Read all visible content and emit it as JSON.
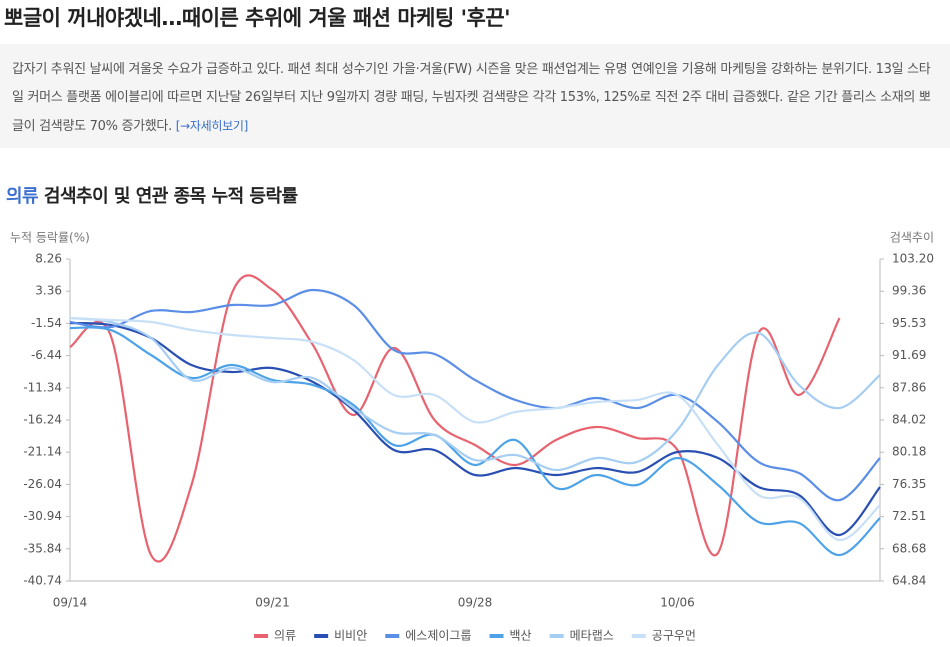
{
  "header": {
    "title": "뽀글이 꺼내야겠네…때이른 추위에 겨울 패션 마케팅 '후끈'"
  },
  "article": {
    "text": "갑자기 추워진 날씨에 겨울옷 수요가 급증하고 있다. 패션 최대 성수기인 가을·겨울(FW) 시즌을 맞은 패션업계는 유명 연예인을 기용해 마케팅을 강화하는 분위기다. 13일 스타일 커머스 플랫폼 에이블리에 따르면 지난달 26일부터 지난 9일까지 경량 패딩, 누빔자켓 검색량은 각각 153%, 125%로 직전 2주 대비 급증했다. 같은 기간 플리스 소재의 뽀글이 검색량도 70% 증가했다.",
    "link": "[→자세히보기]"
  },
  "chart_data": {
    "type": "line",
    "title_highlight": "의류",
    "title": "검색추이 및 연관 종목 누적 등락률",
    "y_label": "누적 등락률(%)",
    "y2_label": "검색추이",
    "categories": [
      "09/14",
      null,
      null,
      null,
      null,
      "09/21",
      null,
      null,
      null,
      null,
      "09/28",
      null,
      null,
      null,
      null,
      "10/06",
      null,
      null,
      null,
      null,
      null
    ],
    "ylim": [
      -40.74,
      8.26
    ],
    "yticks": [
      8.26,
      3.36,
      -1.54,
      -6.44,
      -11.34,
      -16.24,
      -21.14,
      -26.04,
      -30.94,
      -35.84,
      -40.74
    ],
    "y2lim": [
      64.84,
      103.2
    ],
    "y2ticks": [
      {
        "value": 103.2,
        "label": "103.20"
      },
      99.36,
      95.53,
      91.69,
      87.86,
      84.02,
      80.18,
      76.35,
      72.51,
      68.68,
      64.84
    ],
    "legend": "bottom",
    "series": [
      {
        "name": "의류",
        "color": "#e8636f",
        "axis": "y2",
        "values": [
          92.72,
          94.15,
          67.94,
          76.28,
          99.15,
          99.51,
          92.95,
          84.62,
          92.6,
          84.02,
          81.04,
          78.66,
          81.64,
          83.19,
          81.88,
          80.45,
          68.18,
          94.38,
          87.0,
          96.17,
          null
        ]
      },
      {
        "name": "비비안",
        "color": "#2a4fb3",
        "values": [
          -1.48,
          -1.78,
          -3.76,
          -7.87,
          -8.94,
          -8.33,
          -10.46,
          -14.72,
          -20.81,
          -20.81,
          -24.61,
          -23.55,
          -24.61,
          -23.55,
          -24.16,
          -21.11,
          -22.02,
          -26.44,
          -27.66,
          -33.74,
          -26.44
        ]
      },
      {
        "name": "에스제이그룹",
        "color": "#5b8ee6",
        "values": [
          -1.33,
          -2.09,
          0.35,
          0.19,
          1.26,
          1.26,
          3.54,
          1.26,
          -5.59,
          -6.2,
          -10.15,
          -13.2,
          -14.42,
          -12.89,
          -14.42,
          -12.44,
          -16.55,
          -22.63,
          -24.31,
          -28.42,
          -22.02
        ]
      },
      {
        "name": "백산",
        "color": "#4ea3e8",
        "values": [
          -2.24,
          -2.54,
          -6.35,
          -9.85,
          -7.87,
          -10.15,
          -10.92,
          -13.96,
          -20.05,
          -18.52,
          -23.09,
          -19.29,
          -26.59,
          -24.61,
          -26.13,
          -22.02,
          -26.13,
          -31.76,
          -31.92,
          -36.79,
          -31.16
        ]
      },
      {
        "name": "메타랩스",
        "color": "#a6cdf2",
        "values": [
          -0.72,
          -1.33,
          -3.76,
          -10.15,
          -8.33,
          -10.46,
          -9.85,
          -14.42,
          -18.07,
          -18.52,
          -22.33,
          -21.57,
          -23.85,
          -22.02,
          -22.63,
          -17.76,
          -7.87,
          -3.0,
          -10.92,
          -14.42,
          -9.39
        ]
      },
      {
        "name": "공구우먼",
        "color": "#c8e0f7",
        "values": [
          -0.72,
          -1.02,
          -1.33,
          -2.54,
          -3.31,
          -3.76,
          -4.37,
          -7.11,
          -12.44,
          -12.44,
          -16.55,
          -15.02,
          -14.42,
          -13.5,
          -13.2,
          -12.44,
          -20.05,
          -27.66,
          -28.11,
          -34.5,
          -29.18
        ]
      }
    ]
  }
}
